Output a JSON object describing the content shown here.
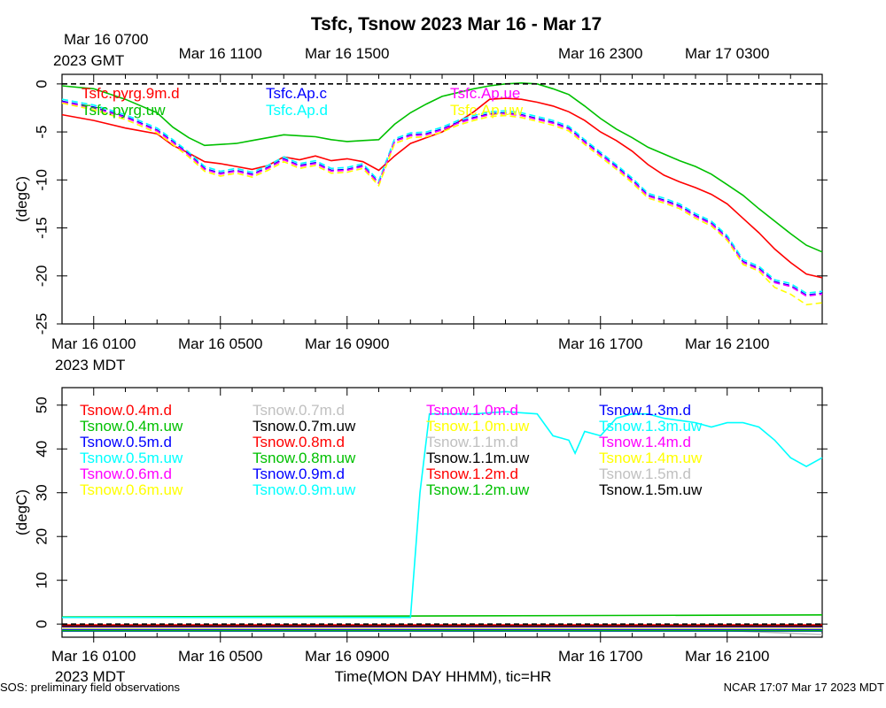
{
  "title": "Tsfc, Tsnow 2023 Mar 16 - Mar 17",
  "footer_left": "SOS: preliminary field observations",
  "footer_right": "NCAR 17:07 Mar 17 2023 MDT",
  "xlabel": "Time(MON DAY HHMM), tic=HR",
  "top_axis": {
    "zone_label": "2023 GMT",
    "ticks": [
      {
        "t": 1,
        "label": "Mar 16 0700"
      },
      {
        "t": 5,
        "label": "Mar 16 1100"
      },
      {
        "t": 9,
        "label": "Mar 16 1500"
      },
      {
        "t": 17,
        "label": "Mar 16 2300"
      },
      {
        "t": 21,
        "label": "Mar 17 0300"
      }
    ]
  },
  "bottom_axis": {
    "zone_label": "2023 MDT",
    "ticks": [
      {
        "t": 1,
        "label": "Mar 16 0100"
      },
      {
        "t": 5,
        "label": "Mar 16 0500"
      },
      {
        "t": 9,
        "label": "Mar 16 0900"
      },
      {
        "t": 17,
        "label": "Mar 16 1700"
      },
      {
        "t": 21,
        "label": "Mar 16 2100"
      }
    ]
  },
  "chart_data": [
    {
      "type": "line",
      "title": "Tsfc",
      "ylabel": "(degC)",
      "xlim": [
        0,
        24
      ],
      "ylim": [
        -25,
        1
      ],
      "yticks": [
        0,
        -5,
        -10,
        -15,
        -20,
        -25
      ],
      "hline": 0,
      "series": [
        {
          "name": "Tsfc.pyrg.9m.d",
          "color": "#ff0000",
          "dash": false,
          "x": [
            0,
            1,
            2,
            3,
            3.5,
            4,
            4.5,
            5,
            5.5,
            6,
            6.5,
            7,
            7.5,
            8,
            8.5,
            9,
            9.5,
            10,
            10.5,
            11,
            11.5,
            12,
            12.5,
            13,
            13.5,
            14,
            14.5,
            15,
            15.5,
            16,
            16.5,
            17,
            17.5,
            18,
            18.5,
            19,
            19.5,
            20,
            20.5,
            21,
            21.5,
            22,
            22.5,
            23,
            23.5,
            24
          ],
          "y": [
            -3.2,
            -3.8,
            -4.6,
            -5.2,
            -6.4,
            -7.2,
            -8.1,
            -8.3,
            -8.6,
            -8.9,
            -8.5,
            -7.6,
            -7.9,
            -7.5,
            -8.0,
            -7.8,
            -8.1,
            -9.0,
            -7.5,
            -6.2,
            -5.6,
            -5.0,
            -4.0,
            -2.9,
            -1.6,
            -1.5,
            -1.6,
            -1.9,
            -2.3,
            -2.9,
            -3.8,
            -5.0,
            -5.9,
            -7.0,
            -8.4,
            -9.5,
            -10.2,
            -10.8,
            -11.5,
            -12.5,
            -14.0,
            -15.5,
            -17.2,
            -18.6,
            -19.8,
            -20.2
          ]
        },
        {
          "name": "Tsfc.pyrg.uw",
          "color": "#00c000",
          "dash": false,
          "x": [
            0,
            1,
            2,
            3,
            3.5,
            4,
            4.5,
            5,
            5.5,
            6,
            6.5,
            7,
            7.5,
            8,
            8.5,
            9,
            9.5,
            10,
            10.5,
            11,
            11.5,
            12,
            12.5,
            13,
            13.5,
            14,
            14.5,
            15,
            15.5,
            16,
            16.5,
            17,
            17.5,
            18,
            18.5,
            19,
            19.5,
            20,
            20.5,
            21,
            21.5,
            22,
            22.5,
            23,
            23.5,
            24
          ],
          "y": [
            -0.2,
            -0.5,
            -1.6,
            -3.0,
            -4.5,
            -5.6,
            -6.4,
            -6.3,
            -6.2,
            -5.9,
            -5.6,
            -5.3,
            -5.4,
            -5.5,
            -5.8,
            -6.0,
            -5.9,
            -5.8,
            -4.2,
            -3.0,
            -2.1,
            -1.3,
            -0.9,
            -0.5,
            -0.2,
            0.0,
            0.1,
            0.0,
            -0.5,
            -1.1,
            -2.3,
            -3.6,
            -4.7,
            -5.6,
            -6.6,
            -7.3,
            -8.0,
            -8.6,
            -9.4,
            -10.5,
            -11.6,
            -13.0,
            -14.3,
            -15.6,
            -16.8,
            -17.5
          ]
        },
        {
          "name": "Tsfc.Ap.c",
          "color": "#0000ff",
          "dash": true,
          "x": [
            0,
            1,
            2,
            3,
            3.5,
            4,
            4.5,
            5,
            5.5,
            6,
            6.5,
            7,
            7.5,
            8,
            8.5,
            9,
            9.5,
            10,
            10.5,
            11,
            11.5,
            12,
            12.5,
            13,
            13.5,
            14,
            14.5,
            15,
            15.5,
            16,
            16.5,
            17,
            17.5,
            18,
            18.5,
            19,
            19.5,
            20,
            20.5,
            21,
            21.5,
            22,
            22.5,
            23,
            23.5,
            24
          ],
          "y": [
            -1.8,
            -2.4,
            -3.4,
            -4.8,
            -6.0,
            -7.3,
            -8.8,
            -9.3,
            -9.0,
            -9.4,
            -8.7,
            -7.8,
            -8.5,
            -8.2,
            -9.0,
            -8.9,
            -8.5,
            -10.3,
            -5.9,
            -5.3,
            -5.2,
            -4.7,
            -4.0,
            -3.5,
            -3.1,
            -3.0,
            -3.2,
            -3.6,
            -4.0,
            -4.6,
            -6.0,
            -7.3,
            -8.6,
            -10.0,
            -11.6,
            -12.1,
            -12.7,
            -13.7,
            -14.5,
            -16.0,
            -18.5,
            -19.2,
            -20.6,
            -21.0,
            -22.0,
            -21.8
          ]
        },
        {
          "name": "Tsfc.Ap.d",
          "color": "#00ffff",
          "dash": true,
          "x": [
            0,
            1,
            2,
            3,
            3.5,
            4,
            4.5,
            5,
            5.5,
            6,
            6.5,
            7,
            7.5,
            8,
            8.5,
            9,
            9.5,
            10,
            10.5,
            11,
            11.5,
            12,
            12.5,
            13,
            13.5,
            14,
            14.5,
            15,
            15.5,
            16,
            16.5,
            17,
            17.5,
            18,
            18.5,
            19,
            19.5,
            20,
            20.5,
            21,
            21.5,
            22,
            22.5,
            23,
            23.5,
            24
          ],
          "y": [
            -1.6,
            -2.2,
            -3.2,
            -4.6,
            -5.8,
            -7.1,
            -8.6,
            -9.1,
            -8.8,
            -9.2,
            -8.5,
            -7.6,
            -8.3,
            -8.0,
            -8.8,
            -8.7,
            -8.3,
            -10.1,
            -5.7,
            -5.1,
            -5.0,
            -4.5,
            -3.8,
            -3.3,
            -2.9,
            -2.8,
            -3.0,
            -3.4,
            -3.8,
            -4.4,
            -5.8,
            -7.1,
            -8.4,
            -9.8,
            -11.4,
            -11.9,
            -12.5,
            -13.5,
            -14.3,
            -15.8,
            -18.3,
            -19.0,
            -20.4,
            -20.8,
            -21.8,
            -21.6
          ]
        },
        {
          "name": "Tsfc.Ap.ue",
          "color": "#ff00ff",
          "dash": true,
          "x": [
            0,
            1,
            2,
            3,
            3.5,
            4,
            4.5,
            5,
            5.5,
            6,
            6.5,
            7,
            7.5,
            8,
            8.5,
            9,
            9.5,
            10,
            10.5,
            11,
            11.5,
            12,
            12.5,
            13,
            13.5,
            14,
            14.5,
            15,
            15.5,
            16,
            16.5,
            17,
            17.5,
            18,
            18.5,
            19,
            19.5,
            20,
            20.5,
            21,
            21.5,
            22,
            22.5,
            23,
            23.5,
            24
          ],
          "y": [
            -1.9,
            -2.5,
            -3.5,
            -4.9,
            -6.1,
            -7.4,
            -8.9,
            -9.4,
            -9.1,
            -9.5,
            -8.8,
            -7.9,
            -8.6,
            -8.3,
            -9.1,
            -9.0,
            -8.6,
            -10.4,
            -6.0,
            -5.4,
            -5.3,
            -4.8,
            -4.1,
            -3.6,
            -3.2,
            -3.1,
            -3.3,
            -3.7,
            -4.1,
            -4.7,
            -6.1,
            -7.4,
            -8.7,
            -10.1,
            -11.7,
            -12.2,
            -12.8,
            -13.8,
            -14.6,
            -16.1,
            -18.6,
            -19.3,
            -20.7,
            -21.1,
            -22.1,
            -21.9
          ]
        },
        {
          "name": "Tsfc.Ap.uw",
          "color": "#ffff00",
          "dash": true,
          "x": [
            0,
            1,
            2,
            3,
            3.5,
            4,
            4.5,
            5,
            5.5,
            6,
            6.5,
            7,
            7.5,
            8,
            8.5,
            9,
            9.5,
            10,
            10.5,
            11,
            11.5,
            12,
            12.5,
            13,
            13.5,
            14,
            14.5,
            15,
            15.5,
            16,
            16.5,
            17,
            17.5,
            18,
            18.5,
            19,
            19.5,
            20,
            20.5,
            21,
            21.5,
            22,
            22.5,
            23,
            23.5,
            24
          ],
          "y": [
            -2.0,
            -2.7,
            -3.7,
            -5.1,
            -6.3,
            -7.6,
            -9.1,
            -9.6,
            -9.3,
            -9.7,
            -9.0,
            -8.1,
            -8.8,
            -8.5,
            -9.3,
            -9.2,
            -8.8,
            -10.6,
            -6.2,
            -5.6,
            -5.5,
            -5.0,
            -4.3,
            -3.8,
            -3.4,
            -3.3,
            -3.5,
            -3.9,
            -4.3,
            -4.9,
            -6.3,
            -7.6,
            -8.9,
            -10.3,
            -11.9,
            -12.4,
            -13.0,
            -14.0,
            -14.8,
            -16.3,
            -18.8,
            -19.5,
            -21.2,
            -21.9,
            -23.0,
            -22.8
          ]
        }
      ]
    },
    {
      "type": "line",
      "title": "Tsnow",
      "ylabel": "(degC)",
      "xlim": [
        0,
        24
      ],
      "ylim": [
        -3,
        54
      ],
      "yticks": [
        0,
        10,
        20,
        30,
        40,
        50
      ],
      "hline": 0,
      "series": [
        {
          "name": "Tsnow.0.4m.d",
          "color": "#ff0000",
          "x": [
            0,
            24
          ],
          "y": [
            -0.3,
            -0.3
          ]
        },
        {
          "name": "Tsnow.0.4m.uw",
          "color": "#00c000",
          "x": [
            0,
            24
          ],
          "y": [
            1.6,
            2.1
          ]
        },
        {
          "name": "Tsnow.0.5m.d",
          "color": "#0000ff",
          "x": [
            0,
            24
          ],
          "y": [
            -1.3,
            -1.0
          ]
        },
        {
          "name": "Tsnow.0.5m.uw",
          "color": "#00ffff",
          "x": [
            0,
            11,
            11.3,
            11.6,
            12,
            13,
            14,
            15,
            15.5,
            16,
            16.2,
            16.5,
            17,
            17.5,
            18,
            18.5,
            19,
            19.5,
            20,
            20.5,
            21,
            21.5,
            22,
            22.5,
            23,
            23.5,
            24
          ],
          "y": [
            1.5,
            1.5,
            30,
            48,
            48,
            48,
            48.5,
            48,
            43,
            42,
            39,
            44,
            43,
            47,
            48,
            48,
            47,
            46.5,
            46,
            45,
            46,
            46,
            45,
            42,
            38,
            36,
            38
          ]
        },
        {
          "name": "Tsnow.0.6m.d",
          "color": "#ff00ff",
          "x": [
            0,
            24
          ],
          "y": [
            -0.6,
            -0.6
          ]
        },
        {
          "name": "Tsnow.0.6m.uw",
          "color": "#ffff00",
          "x": [
            0,
            24
          ],
          "y": [
            -0.9,
            -0.9
          ]
        },
        {
          "name": "Tsnow.0.7m.d",
          "color": "#c0c0c0",
          "x": [
            0,
            4,
            5,
            12,
            20,
            24
          ],
          "y": [
            -0.9,
            -1.5,
            -1.2,
            -1.0,
            -1.2,
            -2.4
          ]
        },
        {
          "name": "Tsnow.0.7m.uw",
          "color": "#000000",
          "x": [
            0,
            24
          ],
          "y": [
            -0.4,
            -0.4
          ]
        },
        {
          "name": "Tsnow.0.8m.d",
          "color": "#ff0000",
          "x": [
            0,
            24
          ],
          "y": [
            -0.7,
            -0.7
          ]
        },
        {
          "name": "Tsnow.0.8m.uw",
          "color": "#00c000",
          "x": [
            0,
            24
          ],
          "y": [
            -1.4,
            -1.4
          ]
        },
        {
          "name": "Tsnow.0.9m.d",
          "color": "#0000ff",
          "x": [
            0,
            24
          ],
          "y": [
            -1.6,
            -1.6
          ]
        },
        {
          "name": "Tsnow.0.9m.uw",
          "color": "#00ffff",
          "x": [
            0,
            24
          ],
          "y": [
            -1.1,
            -1.1
          ]
        },
        {
          "name": "Tsnow.1.0m.d",
          "color": "#ff00ff",
          "x": [
            0,
            24
          ],
          "y": [
            -0.5,
            -0.5
          ]
        },
        {
          "name": "Tsnow.1.0m.uw",
          "color": "#ffff00",
          "x": [
            0,
            24
          ],
          "y": [
            -0.8,
            -0.8
          ]
        },
        {
          "name": "Tsnow.1.1m.d",
          "color": "#c0c0c0",
          "x": [
            0,
            24
          ],
          "y": [
            -0.8,
            -0.8
          ]
        },
        {
          "name": "Tsnow.1.1m.uw",
          "color": "#000000",
          "x": [
            0,
            24
          ],
          "y": [
            -0.6,
            -0.6
          ]
        },
        {
          "name": "Tsnow.1.2m.d",
          "color": "#ff0000",
          "x": [
            0,
            24
          ],
          "y": [
            -0.2,
            -0.2
          ]
        },
        {
          "name": "Tsnow.1.2m.uw",
          "color": "#00c000",
          "x": [
            0,
            24
          ],
          "y": [
            -1.5,
            -1.5
          ]
        },
        {
          "name": "Tsnow.1.3m.d",
          "color": "#0000ff",
          "x": [
            0,
            24
          ],
          "y": [
            -1.2,
            -1.2
          ]
        },
        {
          "name": "Tsnow.1.3m.uw",
          "color": "#00ffff",
          "x": [
            0,
            24
          ],
          "y": [
            -1.0,
            -1.0
          ]
        },
        {
          "name": "Tsnow.1.4m.d",
          "color": "#ff00ff",
          "x": [
            0,
            24
          ],
          "y": [
            -0.7,
            -0.7
          ]
        },
        {
          "name": "Tsnow.1.4m.uw",
          "color": "#ffff00",
          "x": [
            0,
            24
          ],
          "y": [
            -1.0,
            -1.0
          ]
        },
        {
          "name": "Tsnow.1.5m.d",
          "color": "#c0c0c0",
          "x": [
            0,
            24
          ],
          "y": [
            -0.9,
            -0.9
          ]
        },
        {
          "name": "Tsnow.1.5m.uw",
          "color": "#000000",
          "x": [
            0,
            24
          ],
          "y": [
            -0.5,
            -0.5
          ]
        }
      ]
    }
  ]
}
